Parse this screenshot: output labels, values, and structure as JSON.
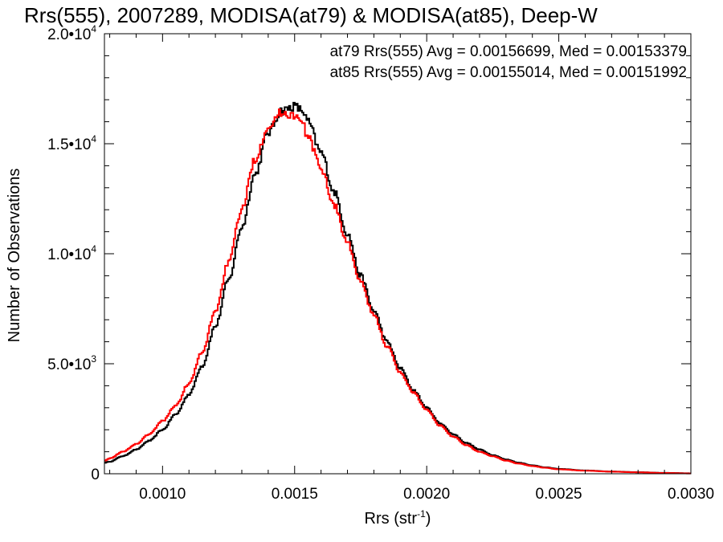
{
  "chart_data": {
    "type": "line",
    "title": "Rrs(555), 2007289, MODISA(at79) & MODISA(at85), Deep-W",
    "xlabel": "Rrs (str",
    "xlabel_exponent": "-1",
    "xlabel_suffix": ")",
    "ylabel": "Number of Observations",
    "xlim": [
      0.00078,
      0.003
    ],
    "ylim": [
      0,
      20000
    ],
    "x_ticks": [
      {
        "value": 0.001,
        "label": "0.0010"
      },
      {
        "value": 0.0015,
        "label": "0.0015"
      },
      {
        "value": 0.002,
        "label": "0.0020"
      },
      {
        "value": 0.0025,
        "label": "0.0025"
      },
      {
        "value": 0.003,
        "label": "0.0030"
      }
    ],
    "y_ticks": [
      {
        "value": 0,
        "mantissa": "0",
        "exponent": ""
      },
      {
        "value": 5000,
        "mantissa": "5.0•10",
        "exponent": "3"
      },
      {
        "value": 10000,
        "mantissa": "1.0•10",
        "exponent": "4"
      },
      {
        "value": 15000,
        "mantissa": "1.5•10",
        "exponent": "4"
      },
      {
        "value": 20000,
        "mantissa": "2.0•10",
        "exponent": "4"
      }
    ],
    "annotations": [
      {
        "text": "at79 Rrs(555) Avg = 0.00156699, Med = 0.00153379",
        "color": "#000000"
      },
      {
        "text": "at85 Rrs(555) Avg = 0.00155014, Med = 0.00151992",
        "color": "#ff0000"
      }
    ],
    "grid": false,
    "series": [
      {
        "color": "#000000",
        "step": true,
        "x": [
          0.00078,
          0.0008,
          0.00085,
          0.0009,
          0.00095,
          0.001,
          0.00105,
          0.0011,
          0.00115,
          0.0012,
          0.00125,
          0.0013,
          0.00135,
          0.0014,
          0.00145,
          0.0015,
          0.00153,
          0.00155,
          0.0016,
          0.00165,
          0.0017,
          0.00175,
          0.0018,
          0.00185,
          0.0019,
          0.00195,
          0.002,
          0.00205,
          0.0021,
          0.00215,
          0.0022,
          0.00225,
          0.0023,
          0.00235,
          0.0024,
          0.00245,
          0.0025,
          0.0026,
          0.0027,
          0.0028,
          0.0029,
          0.003
        ],
        "y": [
          500,
          550,
          800,
          1100,
          1500,
          2000,
          2700,
          3600,
          4900,
          6700,
          8800,
          11200,
          13600,
          15500,
          16500,
          16700,
          16500,
          16000,
          14600,
          12800,
          10900,
          9000,
          7400,
          6000,
          4800,
          3800,
          3000,
          2300,
          1800,
          1400,
          1100,
          850,
          650,
          500,
          380,
          290,
          220,
          150,
          100,
          70,
          40,
          20
        ]
      },
      {
        "color": "#ff0000",
        "step": true,
        "x": [
          0.00078,
          0.0008,
          0.00085,
          0.0009,
          0.00095,
          0.001,
          0.00105,
          0.0011,
          0.00115,
          0.0012,
          0.00125,
          0.0013,
          0.00135,
          0.0014,
          0.00145,
          0.0015,
          0.00153,
          0.00155,
          0.0016,
          0.00165,
          0.0017,
          0.00175,
          0.0018,
          0.00185,
          0.0019,
          0.00195,
          0.002,
          0.00205,
          0.0021,
          0.00215,
          0.0022,
          0.00225,
          0.0023,
          0.00235,
          0.0024,
          0.00245,
          0.0025,
          0.0026,
          0.0027,
          0.0028,
          0.0029,
          0.003
        ],
        "y": [
          600,
          700,
          1000,
          1350,
          1800,
          2400,
          3100,
          4100,
          5500,
          7400,
          9600,
          12000,
          14300,
          15800,
          16400,
          16300,
          15900,
          15300,
          13900,
          12200,
          10500,
          8700,
          7200,
          5800,
          4600,
          3700,
          2900,
          2200,
          1700,
          1300,
          1000,
          800,
          600,
          460,
          350,
          270,
          200,
          140,
          95,
          65,
          35,
          15
        ]
      }
    ]
  }
}
